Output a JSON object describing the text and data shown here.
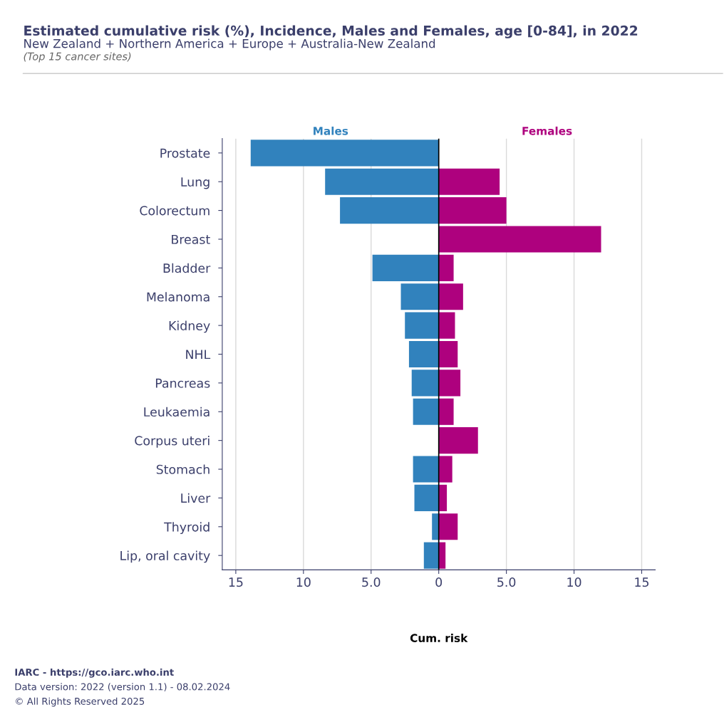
{
  "chart_data": {
    "type": "bar",
    "orientation": "horizontal",
    "title": "Estimated cumulative risk (%), Incidence, Males and Females, age [0-84], in 2022",
    "subtitle": "New Zealand + Northern America + Europe + Australia-New Zealand",
    "xlabel": "Cum. risk",
    "annotations": [
      "(Top 15 cancer sites)",
      "IARC - https://gco.iarc.who.int",
      "Data version: 2022 (version 1.1) - 08.02.2024",
      "© All Rights Reserved 2025"
    ],
    "categories": [
      "Prostate",
      "Lung",
      "Colorectum",
      "Breast",
      "Bladder",
      "Melanoma",
      "Kidney",
      "NHL",
      "Pancreas",
      "Leukaemia",
      "Corpus uteri",
      "Stomach",
      "Liver",
      "Thyroid",
      "Lip, oral cavity"
    ],
    "series": [
      {
        "name": "Males",
        "color": "#3182bd",
        "values": [
          -13.9,
          -8.4,
          -7.3,
          null,
          -4.9,
          -2.8,
          -2.5,
          -2.2,
          -2.0,
          -1.9,
          null,
          -1.9,
          -1.8,
          -0.5,
          -1.1
        ]
      },
      {
        "name": "Females",
        "color": "#ae017e",
        "values": [
          null,
          4.5,
          5.0,
          12.0,
          1.1,
          1.8,
          1.2,
          1.4,
          1.6,
          1.1,
          2.9,
          1.0,
          0.6,
          1.4,
          0.5
        ]
      }
    ],
    "xlim": [
      -16,
      16
    ],
    "xticks": [
      {
        "value": -15,
        "label": "15"
      },
      {
        "value": -10,
        "label": "10"
      },
      {
        "value": -5,
        "label": "5.0"
      },
      0,
      {
        "value": 5,
        "label": "5.0"
      },
      10,
      15
    ],
    "ref_lines": [
      {
        "axis": "x",
        "value": 0,
        "color": "#000000"
      }
    ],
    "grid": "x",
    "stacked": true
  }
}
